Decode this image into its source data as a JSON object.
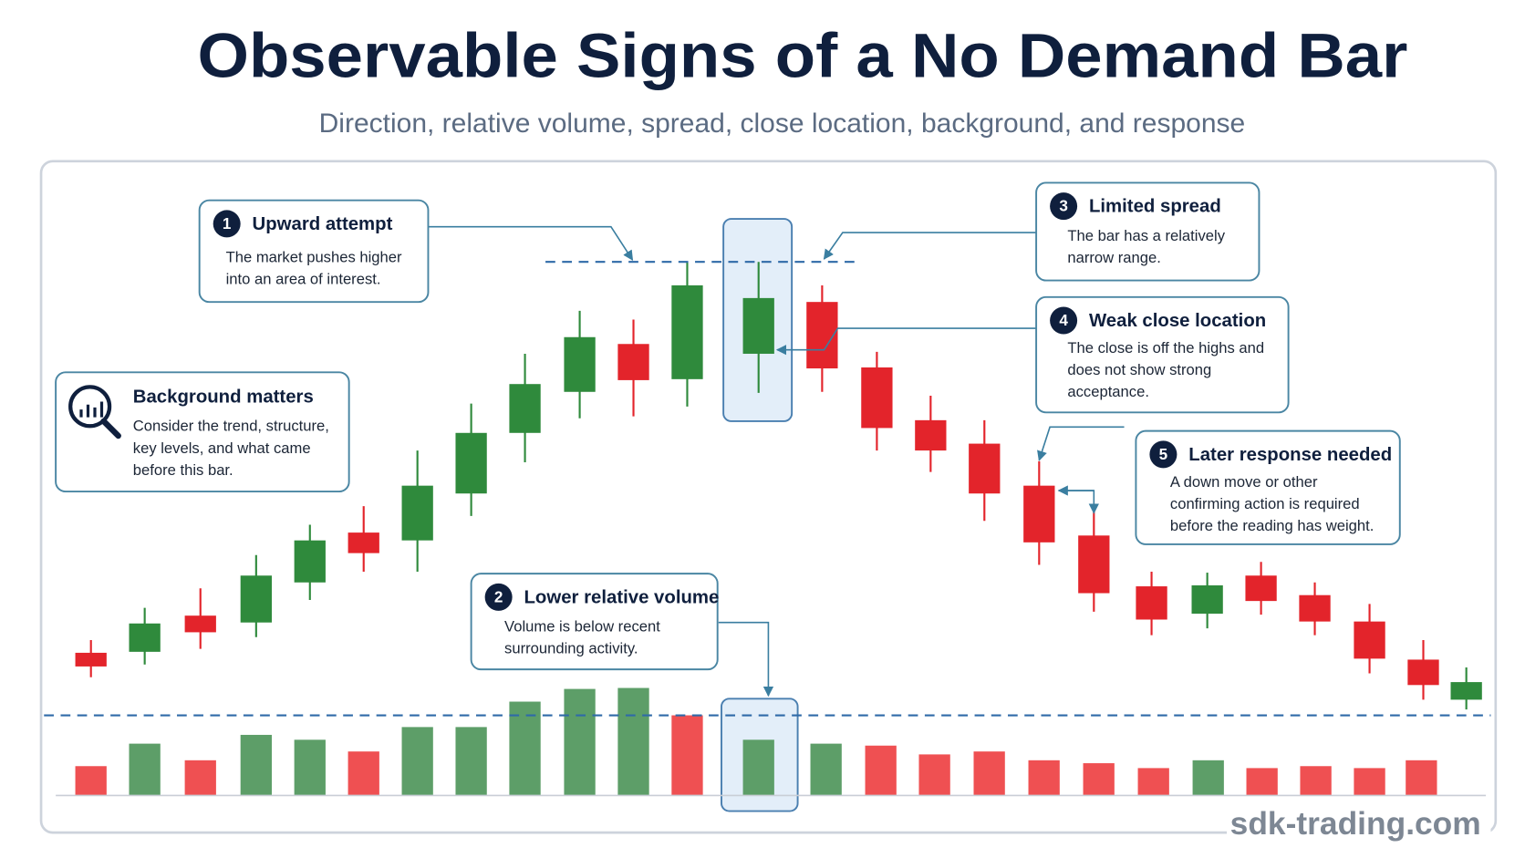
{
  "header": {
    "title": "Observable Signs of a No Demand Bar",
    "subtitle": "Direction, relative volume, spread, close location, background, and response"
  },
  "callouts": [
    {
      "number": "1",
      "title": "Upward attempt",
      "lines": [
        "The market pushes higher",
        "into an area of interest."
      ]
    },
    {
      "number": "2",
      "title": "Lower relative volume",
      "lines": [
        "Volume is below recent",
        "surrounding activity."
      ]
    },
    {
      "number": "3",
      "title": "Limited spread",
      "lines": [
        "The bar has a relatively",
        "narrow range."
      ]
    },
    {
      "number": "4",
      "title": "Weak close location",
      "lines": [
        "The close is off the highs and",
        "does not show strong",
        "acceptance."
      ]
    },
    {
      "number": "5",
      "title": "Later response needed",
      "lines": [
        "A down move or other",
        "confirming action is required",
        "before the reading has weight."
      ]
    }
  ],
  "background": {
    "title": "Background matters",
    "lines": [
      "Consider the trend, structure,",
      "key levels, and what came",
      "before this bar."
    ]
  },
  "watermark": "sdk-trading.com"
}
